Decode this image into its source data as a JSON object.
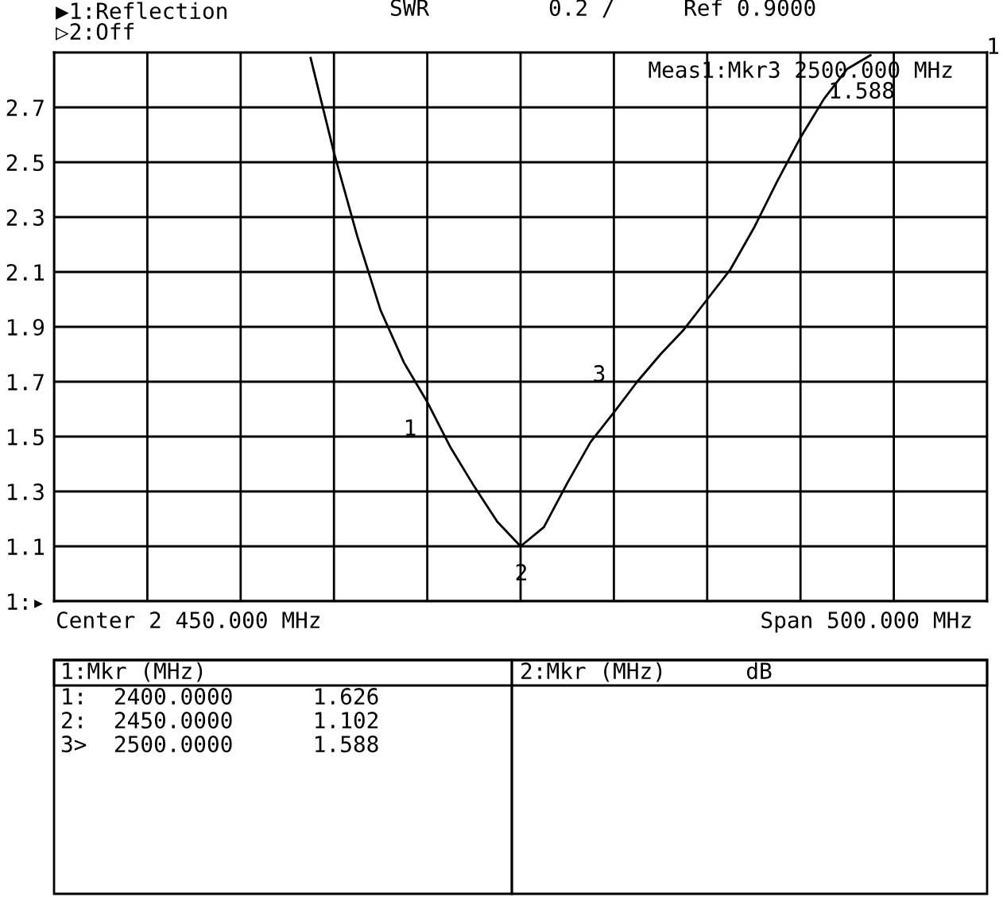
{
  "chart_data": {
    "type": "line",
    "categories": [
      null,
      null,
      null,
      null,
      null,
      null,
      null,
      null,
      null,
      null,
      null,
      null,
      null,
      null,
      null,
      null,
      null,
      null,
      null,
      null,
      null,
      null,
      null,
      null,
      null,
      null,
      null,
      null,
      null,
      null,
      null,
      null,
      null,
      null,
      null,
      null,
      null,
      null,
      null,
      null,
      null
    ],
    "series": [
      {
        "color": "#000000",
        "values": [
          null,
          null,
          null,
          null,
          null,
          null,
          null,
          null,
          null,
          null,
          null,
          2.88,
          2.535,
          2.23,
          1.96,
          1.77,
          1.626,
          1.46,
          1.32,
          1.19,
          1.1,
          1.17,
          1.33,
          1.48,
          1.588,
          1.7,
          1.8,
          1.89,
          2.0,
          2.11,
          2.26,
          2.43,
          2.59,
          2.73,
          2.84,
          2.89,
          null,
          null,
          null,
          null,
          null
        ]
      }
    ],
    "ylim": [
      0.9,
      2.9
    ],
    "yticks": [
      {
        "value": 0.9,
        "label": "1:▸"
      },
      1.1,
      1.3,
      1.5,
      1.7,
      1.9,
      2.1,
      2.3,
      2.5,
      2.7
    ],
    "tick_labels": "y",
    "grid": true,
    "marker": "none",
    "line_style": "solid",
    "annotations": [
      "▶1:Reflection",
      "SWR",
      "0.2 /",
      "Ref 0.9000",
      "▷2:Off",
      "Meas1:Mkr3 2500.000 MHz",
      "1.588",
      "Center 2 450.000 MHz",
      "Span 500.000 MHz",
      "1:Mkr (MHz)",
      "1:  2400.0000      1.626",
      "2:  2450.0000      1.102",
      "3>  2500.0000      1.588",
      "2:Mkr (MHz)      dB",
      "1",
      "1",
      "2",
      "3"
    ]
  }
}
